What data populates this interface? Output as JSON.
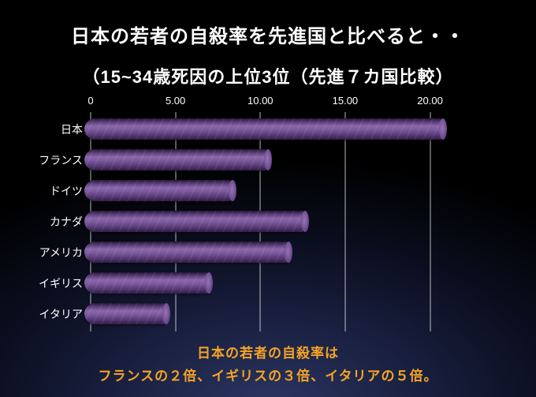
{
  "title": "日本の若者の自殺率を先進国と比べると・・",
  "subtitle": "（15~34歳死因の上位3位（先進７カ国比較）",
  "footer": {
    "line1": "日本の若者の自殺率は",
    "line2": "フランスの２倍、イギリスの３倍、イタリアの５倍。"
  },
  "colors": {
    "background": "#000000",
    "glow": "#2c3662",
    "bar_purple": "#6e4b90",
    "title_text": "#ffffff",
    "axis_text": "#ffffff",
    "footer_text": "#f5a425",
    "gridline": "#ffffff"
  },
  "chart_data": {
    "type": "bar",
    "orientation": "horizontal",
    "title": "日本の若者の自殺率を先進国と比べると・・（15~34歳死因の上位3位（先進７カ国比較）",
    "categories": [
      "日本",
      "フランス",
      "ドイツ",
      "カナダ",
      "アメリカ",
      "イギリス",
      "イタリア"
    ],
    "values": [
      20.8,
      10.5,
      8.4,
      12.7,
      11.7,
      7.0,
      4.5
    ],
    "xticks": [
      0,
      5,
      10,
      15,
      20
    ],
    "xtick_labels": [
      "0",
      "5.00",
      "10.00",
      "15.00",
      "20.00"
    ],
    "xlim": [
      0,
      21.6
    ],
    "grid": true,
    "legend": "none",
    "xlabel": "",
    "ylabel": ""
  }
}
